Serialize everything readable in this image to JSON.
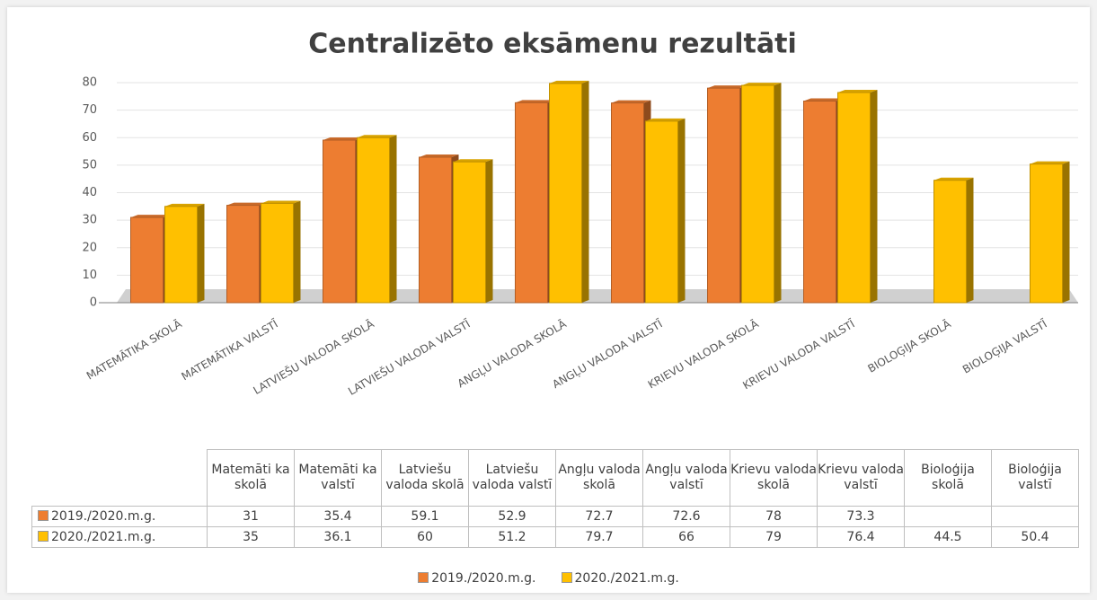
{
  "chart_data": {
    "type": "bar3d",
    "title": "Centralizēto eksāmenu rezultāti",
    "categories": [
      "MATEMĀTIKA SKOLĀ",
      "MATEMĀTIKA VALSTĪ",
      "LATVIEŠU VALODA SKOLĀ",
      "LATVIEŠU VALODA VALSTĪ",
      "ANGĻU VALODA SKOLĀ",
      "ANGĻU VALODA VALSTĪ",
      "KRIEVU VALODA SKOLĀ",
      "KRIEVU VALODA VALSTĪ",
      "BIOLOĢIJA SKOLĀ",
      "BIOLOĢIJA VALSTĪ"
    ],
    "table_headers": [
      "Matemāti ka skolā",
      "Matemāti ka valstī",
      "Latviešu valoda skolā",
      "Latviešu valoda valstī",
      "Angļu valoda skolā",
      "Angļu valoda valstī",
      "Krievu valoda skolā",
      "Krievu valoda valstī",
      "Bioloģija skolā",
      "Bioloģija valstī"
    ],
    "series": [
      {
        "name": "2019./2020.m.g.",
        "color": "#ed7d31",
        "values": [
          31,
          35.4,
          59.1,
          52.9,
          72.7,
          72.6,
          78,
          73.3,
          null,
          null
        ]
      },
      {
        "name": "2020./2021.m.g.",
        "color": "#ffc000",
        "values": [
          35,
          36.1,
          60,
          51.2,
          79.7,
          66,
          79,
          76.4,
          44.5,
          50.4
        ]
      }
    ],
    "ylim": [
      0,
      80
    ],
    "yticks": [
      0,
      10,
      20,
      30,
      40,
      50,
      60,
      70,
      80
    ],
    "grid": true
  }
}
